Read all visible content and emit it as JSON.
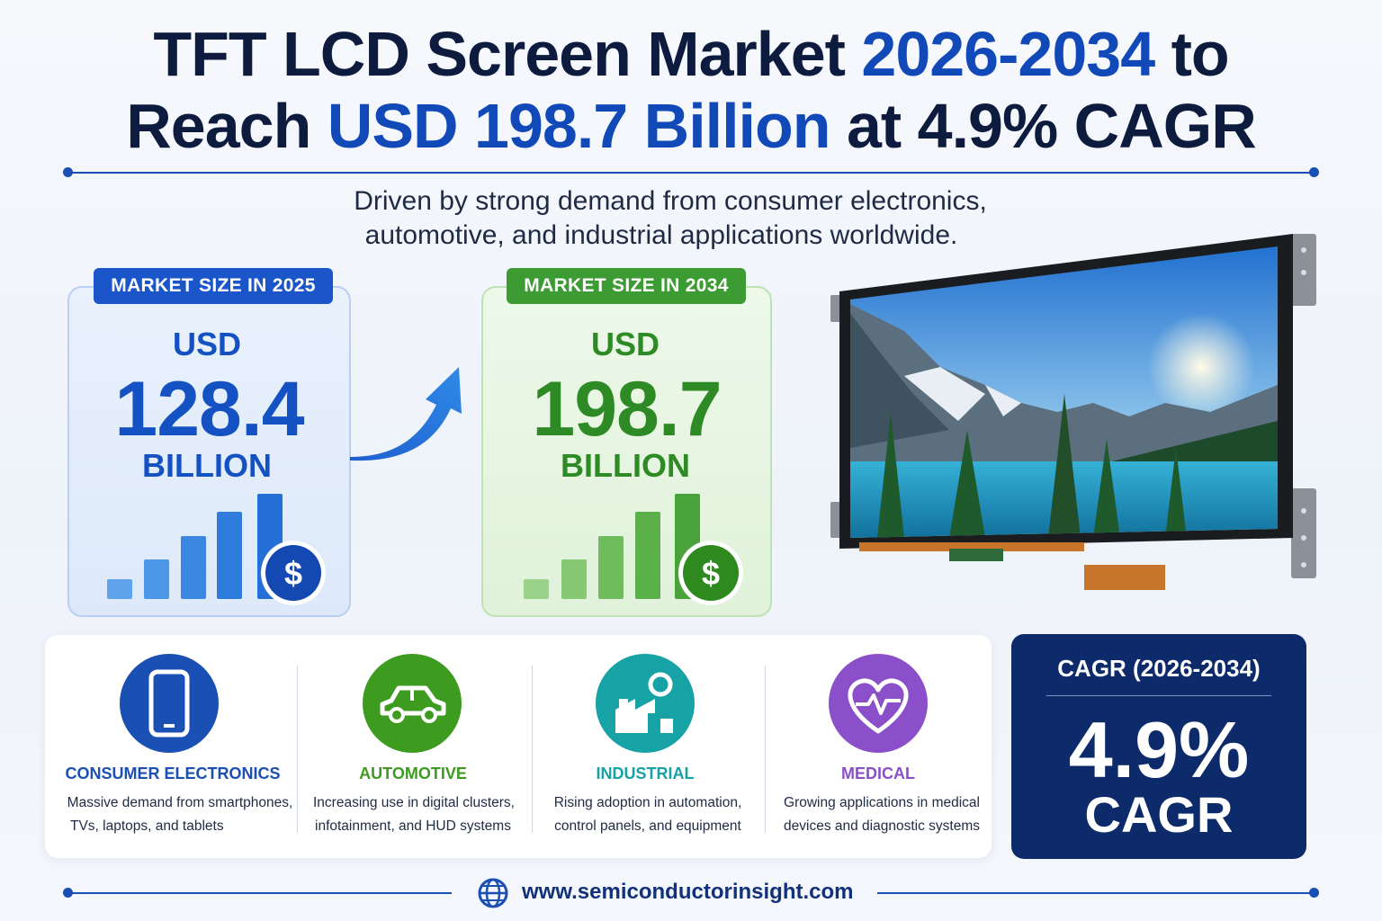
{
  "title": {
    "line1_a": "TFT LCD Screen Market ",
    "line1_b": "2026-2034",
    "line1_c": " to",
    "line2_a": "Reach ",
    "line2_b": "USD 198.7 Billion",
    "line2_c": " at 4.9% CAGR"
  },
  "subtitle": {
    "line1": "Driven by strong demand from consumer electronics,",
    "line2": "automotive, and industrial applications worldwide."
  },
  "market_2025": {
    "label": "MARKET SIZE IN 2025",
    "currency": "USD",
    "value": "128.4",
    "unit": "BILLION"
  },
  "market_2034": {
    "label": "MARKET SIZE IN 2034",
    "currency": "USD",
    "value": "198.7",
    "unit": "BILLION"
  },
  "dollar_symbol": "$",
  "sectors": [
    {
      "name": "CONSUMER ELECTRONICS",
      "desc1": "Massive demand from smartphones,",
      "desc2": "TVs, laptops, and tablets",
      "color": "#1a4fb3",
      "icon": "smartphone-icon"
    },
    {
      "name": "AUTOMOTIVE",
      "desc1": "Increasing use in digital clusters,",
      "desc2": "infotainment, and HUD systems",
      "color": "#3d9b1f",
      "icon": "car-icon"
    },
    {
      "name": "INDUSTRIAL",
      "desc1": "Rising adoption in automation,",
      "desc2": "control panels, and equipment",
      "color": "#17a2a6",
      "icon": "factory-icon"
    },
    {
      "name": "MEDICAL",
      "desc1": "Growing applications in medical",
      "desc2": "devices and diagnostic systems",
      "color": "#8a4fc9",
      "icon": "heart-pulse-icon"
    }
  ],
  "cagr": {
    "label": "CAGR (2026-2034)",
    "value": "4.9%",
    "unit": "CAGR"
  },
  "footer": {
    "url": "www.semiconductorinsight.com"
  },
  "colors": {
    "navy": "#0d1b3e",
    "accent_blue": "#1149b8",
    "accent_green": "#3d9b34",
    "cagr_panel": "#0d2a6b"
  }
}
